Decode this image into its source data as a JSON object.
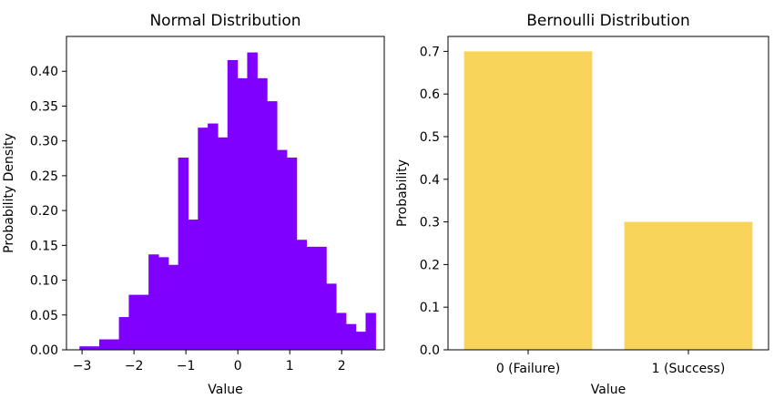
{
  "chart_data": [
    {
      "type": "bar",
      "subtype": "histogram",
      "title": "Normal Distribution",
      "xlabel": "Value",
      "ylabel": "Probability Density",
      "color": "#8000ff",
      "bin_start": -3.05,
      "bin_width": 0.19,
      "values": [
        0.005,
        0.005,
        0.015,
        0.015,
        0.047,
        0.079,
        0.079,
        0.137,
        0.133,
        0.122,
        0.276,
        0.187,
        0.319,
        0.325,
        0.305,
        0.416,
        0.39,
        0.427,
        0.39,
        0.357,
        0.287,
        0.276,
        0.158,
        0.148,
        0.148,
        0.095,
        0.053,
        0.037,
        0.026,
        0.053
      ],
      "xlim": [
        -3.3,
        2.82
      ],
      "ylim": [
        0,
        0.45
      ],
      "xticks": [
        -3,
        -2,
        -1,
        0,
        1,
        2
      ],
      "xtick_labels": [
        "−3",
        "−2",
        "−1",
        "0",
        "1",
        "2"
      ],
      "yticks": [
        0.0,
        0.05,
        0.1,
        0.15,
        0.2,
        0.25,
        0.3,
        0.35,
        0.4
      ],
      "ytick_labels": [
        "0.00",
        "0.05",
        "0.10",
        "0.15",
        "0.20",
        "0.25",
        "0.30",
        "0.35",
        "0.40"
      ],
      "grid": false
    },
    {
      "type": "bar",
      "title": "Bernoulli Distribution",
      "xlabel": "Value",
      "ylabel": "Probability",
      "color": "#f8d55a",
      "categories": [
        "0 (Failure)",
        "1 (Success)"
      ],
      "values": [
        0.7,
        0.3
      ],
      "ylim": [
        0,
        0.735
      ],
      "yticks": [
        0.0,
        0.1,
        0.2,
        0.3,
        0.4,
        0.5,
        0.6,
        0.7
      ],
      "ytick_labels": [
        "0.0",
        "0.1",
        "0.2",
        "0.3",
        "0.4",
        "0.5",
        "0.6",
        "0.7"
      ],
      "grid": false
    }
  ]
}
